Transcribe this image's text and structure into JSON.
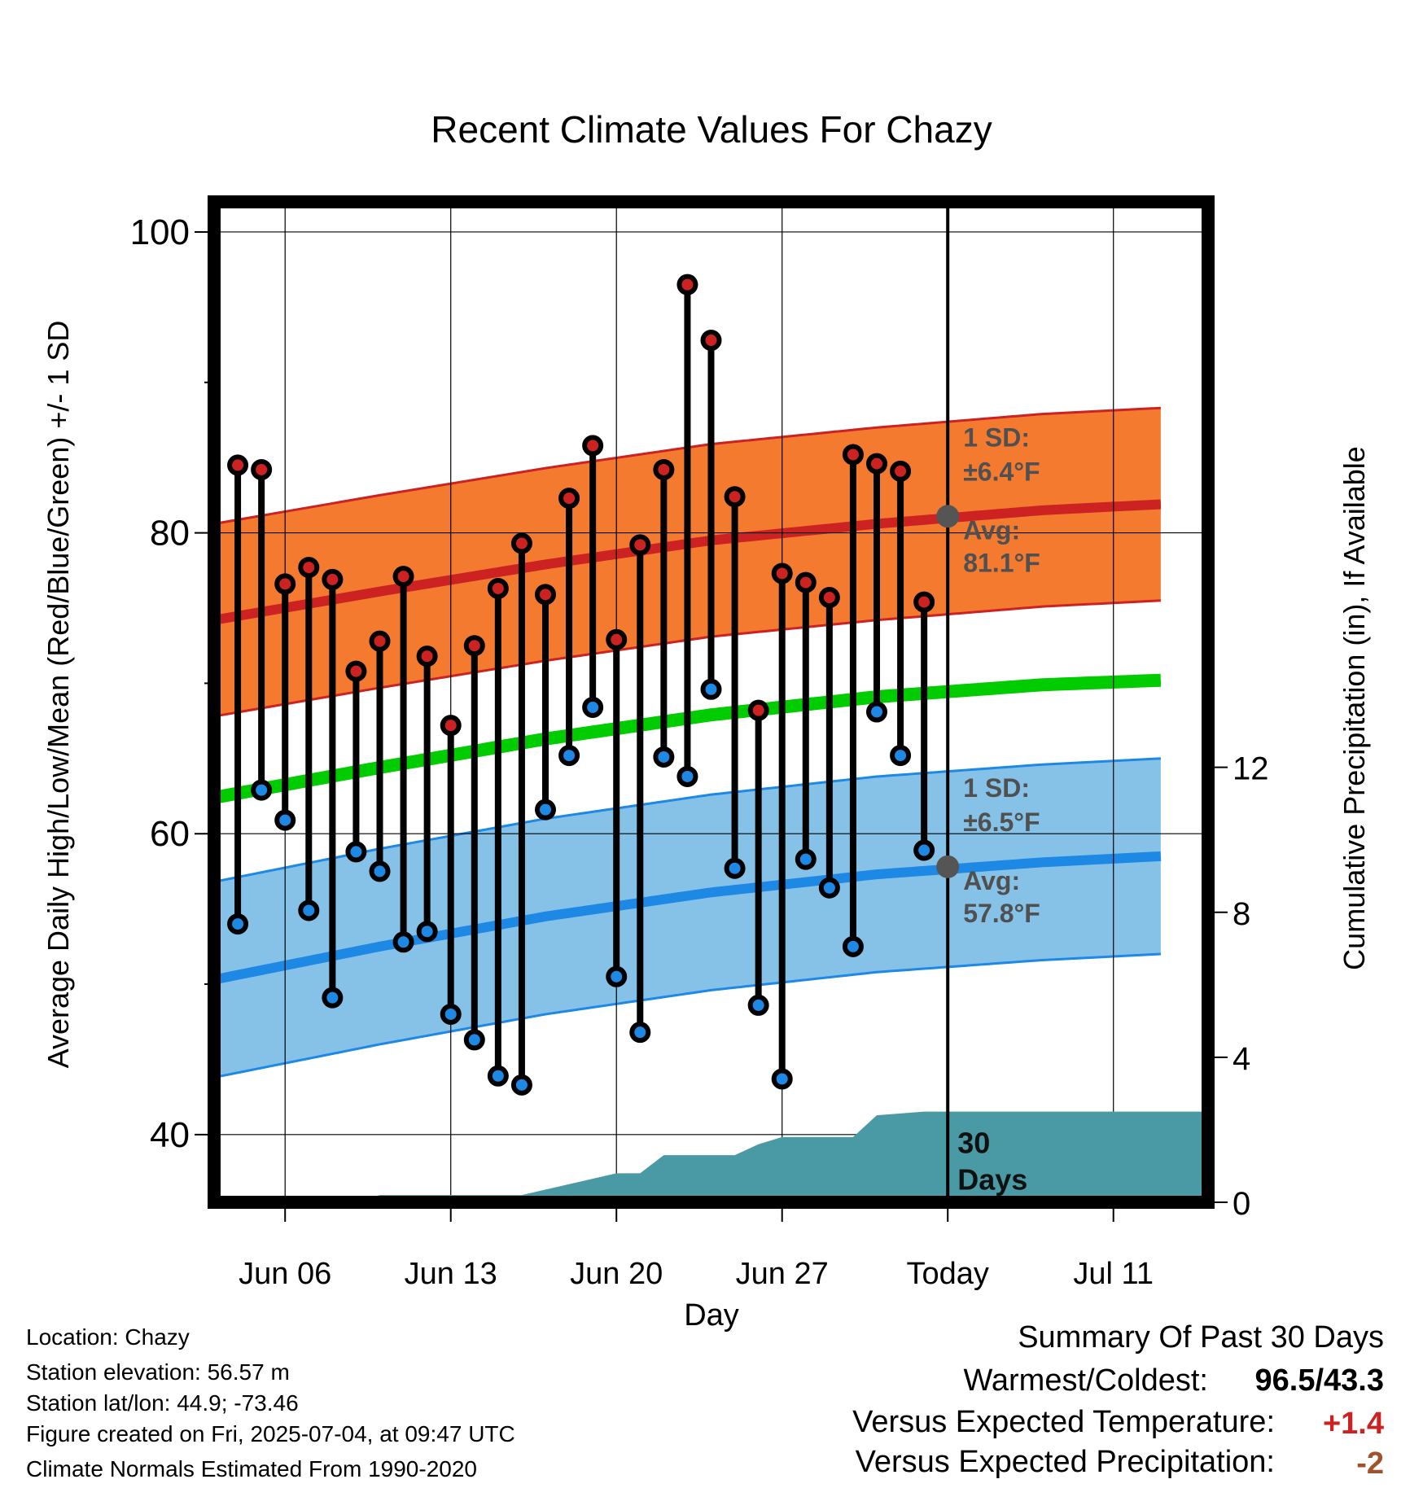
{
  "chart_data": {
    "type": "line",
    "title": "Recent Climate Values For Chazy",
    "xlabel": "Day",
    "ylabel": "Average Daily High/Low/Mean (Red/Blue/Green) +/- 1 SD",
    "y2label": "Cumulative Precipitation (in), If Available",
    "ylim": [
      35.5,
      102
    ],
    "y2lim": [
      0,
      27.6
    ],
    "xlim": [
      "2025-06-03",
      "2025-07-15"
    ],
    "y_ticks": [
      "100",
      "80",
      "60",
      "40"
    ],
    "y2_ticks": [
      "12",
      "8",
      "4",
      "0"
    ],
    "x_ticks": [
      {
        "date": "2025-06-06",
        "label": "Jun 06"
      },
      {
        "date": "2025-06-13",
        "label": "Jun 13"
      },
      {
        "date": "2025-06-20",
        "label": "Jun 20"
      },
      {
        "date": "2025-06-27",
        "label": "Jun 27"
      },
      {
        "date": "2025-07-04",
        "label": "Today"
      },
      {
        "date": "2025-07-11",
        "label": "Jul 11"
      }
    ],
    "grid": true,
    "today": "2025-07-04",
    "today_label": "30 Days",
    "normals": {
      "x": [
        "2025-06-03",
        "2025-06-10",
        "2025-06-17",
        "2025-06-24",
        "2025-07-01",
        "2025-07-08",
        "2025-07-13"
      ],
      "high_mean": [
        74.2,
        76.1,
        77.9,
        79.5,
        80.6,
        81.5,
        81.9
      ],
      "high_sd": 6.4,
      "mean": [
        62.4,
        64.4,
        66.3,
        67.9,
        69.1,
        69.9,
        70.2
      ],
      "low_mean": [
        50.3,
        52.5,
        54.5,
        56.1,
        57.3,
        58.1,
        58.5
      ],
      "low_sd": 6.5
    },
    "series": [
      {
        "x": [
          "2025-06-04",
          "2025-06-05",
          "2025-06-06",
          "2025-06-07",
          "2025-06-08",
          "2025-06-09",
          "2025-06-10",
          "2025-06-11",
          "2025-06-12",
          "2025-06-13",
          "2025-06-14",
          "2025-06-15",
          "2025-06-16",
          "2025-06-17",
          "2025-06-18",
          "2025-06-19",
          "2025-06-20",
          "2025-06-21",
          "2025-06-22",
          "2025-06-23",
          "2025-06-24",
          "2025-06-25",
          "2025-06-26",
          "2025-06-27",
          "2025-06-28",
          "2025-06-29",
          "2025-06-30",
          "2025-07-01",
          "2025-07-02",
          "2025-07-03"
        ],
        "values": [
          84.5,
          84.2,
          76.6,
          77.7,
          76.9,
          70.8,
          72.8,
          77.1,
          71.8,
          67.2,
          72.5,
          76.3,
          79.3,
          75.9,
          82.3,
          85.8,
          72.9,
          79.2,
          84.2,
          96.5,
          92.8,
          82.4,
          68.2,
          77.3,
          76.7,
          75.7,
          85.2,
          84.6,
          84.1,
          75.4
        ]
      },
      {
        "x": [
          "2025-06-04",
          "2025-06-05",
          "2025-06-06",
          "2025-06-07",
          "2025-06-08",
          "2025-06-09",
          "2025-06-10",
          "2025-06-11",
          "2025-06-12",
          "2025-06-13",
          "2025-06-14",
          "2025-06-15",
          "2025-06-16",
          "2025-06-17",
          "2025-06-18",
          "2025-06-19",
          "2025-06-20",
          "2025-06-21",
          "2025-06-22",
          "2025-06-23",
          "2025-06-24",
          "2025-06-25",
          "2025-06-26",
          "2025-06-27",
          "2025-06-28",
          "2025-06-29",
          "2025-06-30",
          "2025-07-01",
          "2025-07-02",
          "2025-07-03"
        ],
        "values": [
          54.0,
          62.9,
          60.9,
          54.9,
          49.1,
          58.8,
          57.5,
          52.8,
          53.5,
          48.0,
          46.3,
          43.9,
          43.3,
          61.6,
          65.2,
          68.4,
          50.5,
          46.8,
          65.1,
          63.8,
          69.6,
          57.7,
          48.6,
          43.7,
          58.3,
          56.4,
          52.5,
          68.1,
          65.2,
          58.9
        ]
      },
      {
        "x": [
          "2025-06-03",
          "2025-06-09",
          "2025-06-10",
          "2025-06-16",
          "2025-06-18",
          "2025-06-20",
          "2025-06-21",
          "2025-06-22",
          "2025-06-25",
          "2025-06-26",
          "2025-06-27",
          "2025-06-28",
          "2025-06-30",
          "2025-07-01",
          "2025-07-03",
          "2025-07-15"
        ],
        "values": [
          0.0,
          0.0,
          0.2,
          0.2,
          0.5,
          0.8,
          0.8,
          1.3,
          1.3,
          1.6,
          1.8,
          1.8,
          1.8,
          2.4,
          2.5,
          2.5
        ]
      }
    ],
    "annotations": {
      "high_sd_label": "1 SD:",
      "high_sd_value": "±6.4°F",
      "high_avg_label": "Avg:",
      "high_avg_value": "81.1°F",
      "low_sd_label": "1 SD:",
      "low_sd_value": "±6.5°F",
      "low_avg_label": "Avg:",
      "low_avg_value": "57.8°F",
      "high_avg_today": 81.1,
      "low_avg_today": 57.8
    },
    "colors": {
      "high": "#cc2222",
      "low": "#1e88e5",
      "mean": "#00cc00",
      "high_band": "#f47a30",
      "low_band": "#86c2e8",
      "precip": "#4a9aa5",
      "avg_marker": "#555555"
    }
  },
  "info": {
    "location": "Location: Chazy",
    "elevation": "Station elevation: 56.57 m",
    "latlon": "Station lat/lon: 44.9; -73.46",
    "created": "Figure created on Fri, 2025-07-04, at 09:47 UTC",
    "normals": "Climate Normals Estimated From 1990-2020"
  },
  "summary": {
    "title": "Summary Of Past 30 Days",
    "warm_cold_label": "Warmest/Coldest:",
    "warm_cold_value": "96.5/43.3",
    "temp_label": "Versus Expected Temperature:",
    "temp_value": "+1.4",
    "temp_color": "#cc2222",
    "precip_label": "Versus Expected Precipitation:",
    "precip_value": "-2",
    "precip_color": "#a0522d"
  }
}
